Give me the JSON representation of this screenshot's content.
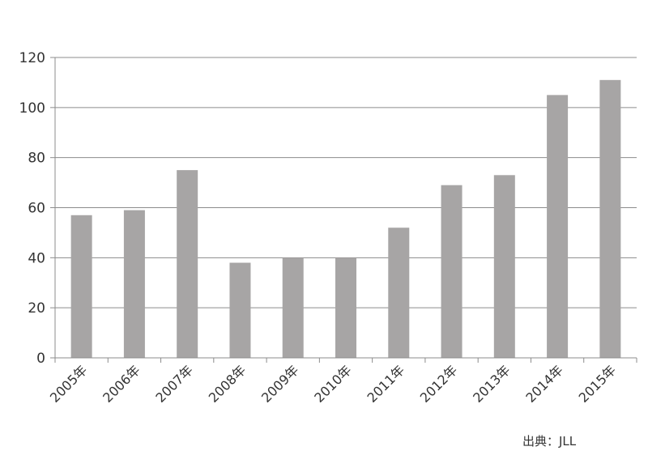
{
  "chart_data": {
    "type": "bar",
    "categories": [
      "2005年",
      "2006年",
      "2007年",
      "2008年",
      "2009年",
      "2010年",
      "2011年",
      "2012年",
      "2013年",
      "2014年",
      "2015年"
    ],
    "values": [
      57,
      59,
      75,
      38,
      40,
      40,
      52,
      69,
      73,
      105,
      111
    ],
    "ylim": [
      0,
      120
    ],
    "yticks": [
      0,
      20,
      40,
      60,
      80,
      100,
      120
    ],
    "grid": true,
    "bar_color": "#a7a5a5",
    "title": "",
    "xlabel": "",
    "ylabel": ""
  },
  "source": "出典：JLL"
}
